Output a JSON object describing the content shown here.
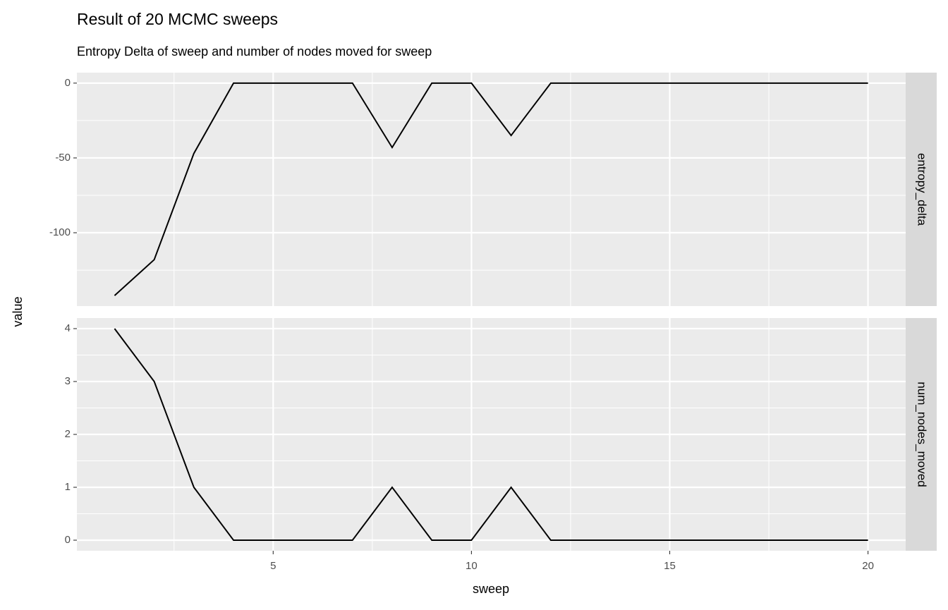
{
  "chart_data": {
    "type": "line",
    "title": "Result of 20 MCMC sweeps",
    "subtitle": "Entropy Delta of sweep and number of nodes moved for sweep",
    "x_label": "sweep",
    "y_label": "value",
    "x": [
      1,
      2,
      3,
      4,
      5,
      6,
      7,
      8,
      9,
      10,
      11,
      12,
      13,
      14,
      15,
      16,
      17,
      18,
      19,
      20
    ],
    "xlim": [
      0.05,
      20.95
    ],
    "xticks": [
      5,
      10,
      15,
      20
    ],
    "grid": true,
    "color": "#000000",
    "facets": [
      {
        "name": "entropy_delta",
        "values": [
          -142,
          -118,
          -47,
          0,
          0,
          0,
          0,
          -43,
          0,
          0,
          -35,
          0,
          0,
          0,
          0,
          0,
          0,
          0,
          0,
          0
        ],
        "ylim": [
          -149,
          7
        ],
        "yticks": [
          -100,
          -50,
          0
        ]
      },
      {
        "name": "num_nodes_moved",
        "values": [
          4,
          3,
          1,
          0,
          0,
          0,
          0,
          1,
          0,
          0,
          1,
          0,
          0,
          0,
          0,
          0,
          0,
          0,
          0,
          0
        ],
        "ylim": [
          -0.2,
          4.2
        ],
        "yticks": [
          0,
          1,
          2,
          3,
          4
        ]
      }
    ]
  }
}
